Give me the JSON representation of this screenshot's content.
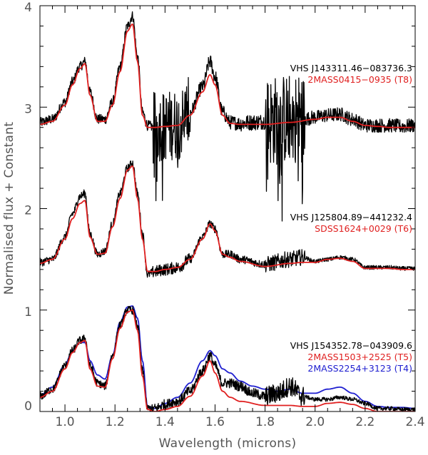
{
  "chart_data": {
    "type": "line",
    "xlabel": "Wavelength (microns)",
    "ylabel": "Normalised flux + Constant",
    "xlim": [
      0.9,
      2.4
    ],
    "ylim": [
      0.0,
      4.0
    ],
    "x_ticks": [
      "1.0",
      "1.2",
      "1.4",
      "1.6",
      "1.8",
      "2.0",
      "2.2",
      "2.4"
    ],
    "y_ticks": [
      "0",
      "1",
      "2",
      "3",
      "4"
    ],
    "colors": {
      "black": "#000000",
      "red": "#e02020",
      "blue": "#2020d0"
    },
    "panels": [
      {
        "offset": 2.8,
        "labels": [
          {
            "text": "VHS J143311.46−083736.3",
            "color": "black"
          },
          {
            "text": "2MASS0415−0935 (T8)",
            "color": "red"
          }
        ],
        "series": [
          {
            "name": "VHS J143311.46−083736.3",
            "color": "black",
            "x": [
              0.9,
              0.95,
              1.0,
              1.03,
              1.06,
              1.08,
              1.1,
              1.13,
              1.16,
              1.19,
              1.22,
              1.25,
              1.27,
              1.29,
              1.31,
              1.33,
              1.36,
              1.4,
              1.45,
              1.5,
              1.55,
              1.58,
              1.6,
              1.63,
              1.66,
              1.7,
              1.75,
              1.8,
              1.85,
              1.88,
              1.91,
              1.95,
              2.0,
              2.05,
              2.1,
              2.15,
              2.2,
              2.25,
              2.3,
              2.35,
              2.4
            ],
            "y": [
              2.85,
              2.88,
              3.05,
              3.25,
              3.4,
              3.45,
              3.15,
              2.88,
              2.88,
              3.05,
              3.4,
              3.8,
              3.9,
              3.5,
              2.95,
              2.82,
              2.8,
              2.82,
              2.83,
              2.95,
              3.2,
              3.45,
              3.3,
              2.95,
              2.85,
              2.84,
              2.85,
              2.86,
              2.87,
              2.88,
              2.9,
              2.88,
              2.9,
              2.92,
              2.93,
              2.88,
              2.82,
              2.82,
              2.82,
              2.81,
              2.82
            ],
            "noise": [
              {
                "from": 0.9,
                "to": 1.35,
                "amp": 0.05
              },
              {
                "from": 1.35,
                "to": 1.5,
                "amp": 0.35
              },
              {
                "from": 1.5,
                "to": 1.7,
                "amp": 0.07
              },
              {
                "from": 1.7,
                "to": 1.8,
                "amp": 0.08
              },
              {
                "from": 1.8,
                "to": 1.96,
                "amp": 0.45
              },
              {
                "from": 1.96,
                "to": 2.4,
                "amp": 0.07
              }
            ]
          },
          {
            "name": "2MASS0415−0935 (T8)",
            "color": "red",
            "x": [
              0.9,
              0.95,
              1.0,
              1.03,
              1.06,
              1.08,
              1.1,
              1.13,
              1.16,
              1.19,
              1.22,
              1.25,
              1.27,
              1.29,
              1.31,
              1.33,
              1.36,
              1.4,
              1.45,
              1.5,
              1.55,
              1.58,
              1.6,
              1.63,
              1.66,
              1.7,
              1.8,
              1.9,
              2.0,
              2.05,
              2.1,
              2.15,
              2.2,
              2.25,
              2.3,
              2.35,
              2.4
            ],
            "y": [
              2.83,
              2.86,
              3.02,
              3.22,
              3.38,
              3.43,
              3.12,
              2.86,
              2.86,
              3.02,
              3.35,
              3.75,
              3.82,
              3.45,
              2.92,
              2.8,
              2.8,
              2.81,
              2.82,
              2.92,
              3.15,
              3.32,
              3.22,
              2.92,
              2.84,
              2.83,
              2.83,
              2.85,
              2.88,
              2.9,
              2.9,
              2.86,
              2.82,
              2.81,
              2.8,
              2.8,
              2.8
            ]
          }
        ]
      },
      {
        "offset": 1.4,
        "labels": [
          {
            "text": "VHS J125804.89−441232.4",
            "color": "black"
          },
          {
            "text": "SDSS1624+0029 (T6)",
            "color": "red"
          }
        ],
        "series": [
          {
            "name": "VHS J125804.89−441232.4",
            "color": "black",
            "x": [
              0.9,
              0.95,
              1.0,
              1.03,
              1.06,
              1.08,
              1.1,
              1.13,
              1.16,
              1.19,
              1.22,
              1.25,
              1.27,
              1.29,
              1.31,
              1.33,
              1.36,
              1.4,
              1.45,
              1.5,
              1.55,
              1.58,
              1.6,
              1.63,
              1.66,
              1.7,
              1.8,
              1.9,
              1.95,
              2.0,
              2.05,
              2.1,
              2.15,
              2.2,
              2.25,
              2.3,
              2.35,
              2.4
            ],
            "y": [
              1.47,
              1.5,
              1.72,
              1.95,
              2.12,
              2.15,
              1.75,
              1.55,
              1.58,
              1.85,
              2.15,
              2.4,
              2.45,
              2.15,
              1.75,
              1.35,
              1.38,
              1.4,
              1.42,
              1.5,
              1.72,
              1.85,
              1.8,
              1.55,
              1.55,
              1.5,
              1.45,
              1.5,
              1.52,
              1.48,
              1.5,
              1.52,
              1.5,
              1.42,
              1.42,
              1.42,
              1.41,
              1.41
            ],
            "noise": [
              {
                "from": 0.9,
                "to": 1.35,
                "amp": 0.04
              },
              {
                "from": 1.35,
                "to": 1.5,
                "amp": 0.06
              },
              {
                "from": 1.5,
                "to": 1.8,
                "amp": 0.04
              },
              {
                "from": 1.8,
                "to": 1.96,
                "amp": 0.08
              },
              {
                "from": 1.96,
                "to": 2.4,
                "amp": 0.02
              }
            ]
          },
          {
            "name": "SDSS1624+0029 (T6)",
            "color": "red",
            "x": [
              0.9,
              0.95,
              1.0,
              1.03,
              1.06,
              1.08,
              1.1,
              1.13,
              1.16,
              1.19,
              1.22,
              1.25,
              1.27,
              1.29,
              1.31,
              1.33,
              1.36,
              1.4,
              1.45,
              1.5,
              1.55,
              1.58,
              1.6,
              1.63,
              1.66,
              1.7,
              1.8,
              1.9,
              1.95,
              2.0,
              2.05,
              2.1,
              2.15,
              2.2,
              2.25,
              2.3,
              2.35,
              2.4
            ],
            "y": [
              1.46,
              1.5,
              1.7,
              1.9,
              2.05,
              2.08,
              1.72,
              1.55,
              1.56,
              1.82,
              2.1,
              2.38,
              2.42,
              2.1,
              1.7,
              1.38,
              1.38,
              1.4,
              1.42,
              1.5,
              1.7,
              1.85,
              1.78,
              1.55,
              1.52,
              1.48,
              1.43,
              1.46,
              1.47,
              1.47,
              1.5,
              1.51,
              1.48,
              1.41,
              1.41,
              1.41,
              1.4,
              1.4
            ]
          }
        ]
      },
      {
        "offset": 0.0,
        "labels": [
          {
            "text": "VHS J154352.78−043909.6",
            "color": "black"
          },
          {
            "text": "2MASS1503+2525 (T5)",
            "color": "red"
          },
          {
            "text": "2MASS2254+3123 (T4)",
            "color": "blue"
          }
        ],
        "series": [
          {
            "name": "VHS J154352.78−043909.6",
            "color": "black",
            "x": [
              0.9,
              0.95,
              1.0,
              1.03,
              1.06,
              1.08,
              1.1,
              1.13,
              1.16,
              1.19,
              1.22,
              1.25,
              1.27,
              1.29,
              1.31,
              1.33,
              1.36,
              1.4,
              1.45,
              1.5,
              1.55,
              1.58,
              1.6,
              1.63,
              1.66,
              1.7,
              1.75,
              1.8,
              1.85,
              1.9,
              1.95,
              2.0,
              2.05,
              2.1,
              2.15,
              2.2,
              2.25,
              2.3,
              2.35,
              2.4
            ],
            "y": [
              0.15,
              0.22,
              0.45,
              0.6,
              0.7,
              0.72,
              0.45,
              0.28,
              0.25,
              0.55,
              0.85,
              1.0,
              1.0,
              0.85,
              0.4,
              0.03,
              0.03,
              0.07,
              0.1,
              0.2,
              0.4,
              0.55,
              0.45,
              0.28,
              0.28,
              0.25,
              0.18,
              0.15,
              0.18,
              0.25,
              0.15,
              0.12,
              0.12,
              0.14,
              0.12,
              0.08,
              0.03,
              0.03,
              0.02,
              0.02
            ],
            "noise": [
              {
                "from": 0.9,
                "to": 1.35,
                "amp": 0.04
              },
              {
                "from": 1.35,
                "to": 1.5,
                "amp": 0.05
              },
              {
                "from": 1.5,
                "to": 1.8,
                "amp": 0.05
              },
              {
                "from": 1.8,
                "to": 1.96,
                "amp": 0.1
              },
              {
                "from": 1.96,
                "to": 2.4,
                "amp": 0.02
              }
            ]
          },
          {
            "name": "2MASS1503+2525 (T5)",
            "color": "red",
            "x": [
              0.9,
              0.95,
              1.0,
              1.03,
              1.06,
              1.08,
              1.1,
              1.13,
              1.16,
              1.19,
              1.22,
              1.25,
              1.27,
              1.29,
              1.31,
              1.33,
              1.36,
              1.4,
              1.45,
              1.5,
              1.55,
              1.58,
              1.6,
              1.63,
              1.66,
              1.7,
              1.8,
              1.9,
              1.95,
              2.0,
              2.05,
              2.1,
              2.15,
              2.2,
              2.25,
              2.3,
              2.35,
              2.4
            ],
            "y": [
              0.14,
              0.2,
              0.42,
              0.58,
              0.68,
              0.7,
              0.42,
              0.25,
              0.24,
              0.52,
              0.82,
              0.98,
              1.0,
              0.8,
              0.35,
              0.02,
              0.0,
              0.02,
              0.05,
              0.15,
              0.35,
              0.5,
              0.38,
              0.2,
              0.14,
              0.1,
              0.06,
              0.06,
              0.05,
              0.05,
              0.08,
              0.09,
              0.07,
              0.03,
              0.0,
              0.0,
              0.0,
              0.0
            ]
          },
          {
            "name": "2MASS2254+3123 (T4)",
            "color": "blue",
            "x": [
              0.9,
              0.95,
              1.0,
              1.03,
              1.06,
              1.08,
              1.1,
              1.13,
              1.16,
              1.19,
              1.22,
              1.25,
              1.27,
              1.29,
              1.31,
              1.33,
              1.36,
              1.4,
              1.45,
              1.5,
              1.55,
              1.58,
              1.6,
              1.63,
              1.66,
              1.7,
              1.75,
              1.8,
              1.85,
              1.9,
              1.95,
              2.0,
              2.05,
              2.1,
              2.15,
              2.2,
              2.25,
              2.3,
              2.35,
              2.4
            ],
            "y": [
              0.16,
              0.24,
              0.46,
              0.6,
              0.68,
              0.68,
              0.5,
              0.36,
              0.32,
              0.55,
              0.88,
              1.03,
              1.04,
              0.92,
              0.5,
              0.05,
              0.03,
              0.08,
              0.14,
              0.28,
              0.5,
              0.6,
              0.55,
              0.42,
              0.38,
              0.3,
              0.25,
              0.22,
              0.2,
              0.22,
              0.18,
              0.18,
              0.22,
              0.24,
              0.18,
              0.1,
              0.05,
              0.04,
              0.04,
              0.03
            ]
          }
        ]
      }
    ]
  }
}
